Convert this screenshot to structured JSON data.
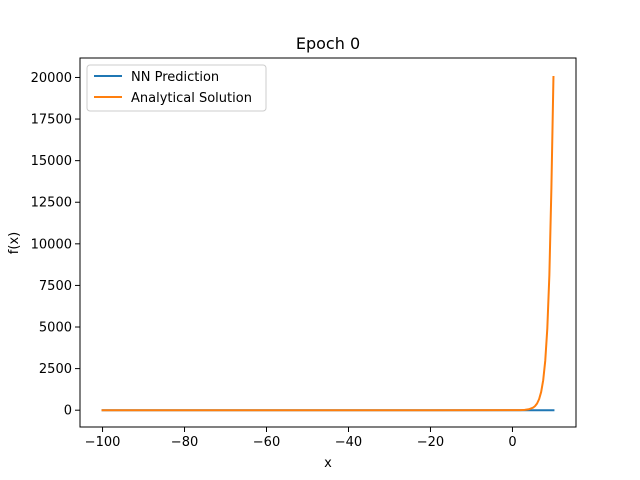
{
  "chart_data": {
    "type": "line",
    "title": "Epoch 0",
    "xlabel": "x",
    "ylabel": "f(x)",
    "xlim": [
      -105.5,
      15.5
    ],
    "ylim": [
      -1010,
      21170
    ],
    "x_ticks": [
      -100,
      -80,
      -60,
      -40,
      -20,
      0
    ],
    "x_tick_labels": [
      "−100",
      "−80",
      "−60",
      "−40",
      "−20",
      "0"
    ],
    "y_ticks": [
      0,
      2500,
      5000,
      7500,
      10000,
      12500,
      15000,
      17500,
      20000
    ],
    "y_tick_labels": [
      "0",
      "2500",
      "5000",
      "7500",
      "10000",
      "12500",
      "15000",
      "17500",
      "20000"
    ],
    "grid": false,
    "legend_position": "top-left",
    "series": [
      {
        "name": "NN Prediction",
        "color": "#1f77b4",
        "x": [
          -100,
          -80,
          -60,
          -40,
          -20,
          0,
          10
        ],
        "y": [
          0,
          0,
          0,
          0,
          0,
          0,
          0
        ]
      },
      {
        "name": "Analytical Solution",
        "color": "#ff7f0e",
        "x": [
          -100,
          -80,
          -60,
          -40,
          -20,
          0,
          2,
          3,
          4,
          5,
          5.5,
          6,
          6.5,
          7,
          7.5,
          8,
          8.5,
          9,
          9.5,
          10
        ],
        "y": [
          0,
          0,
          0,
          0,
          0,
          1,
          7,
          20,
          55,
          148,
          245,
          403,
          665,
          1097,
          1808,
          2981,
          4915,
          8103,
          13360,
          20026
        ]
      }
    ]
  }
}
